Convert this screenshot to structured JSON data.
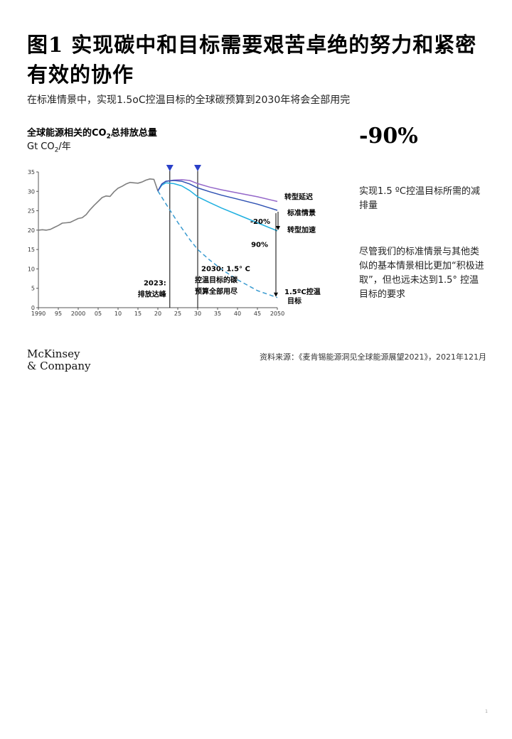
{
  "header": {
    "title": "图1 实现碳中和目标需要艰苦卓绝的努力和紧密有效的协作",
    "subtitle": "在标准情景中，实现1.5oC控温目标的全球碳预算到2030年将会全部用完"
  },
  "chart_header": {
    "title_prefix": "全球能源相关的CO",
    "title_sub": "2",
    "title_suffix": "总排放总量",
    "unit_prefix": "Gt CO",
    "unit_sub": "2",
    "unit_suffix": "/年"
  },
  "highlight": {
    "big_number": "-90%",
    "note1": "实现1.5 ºC控温目标所需的减排量",
    "note2": "尽管我们的标准情景与其他类似的基本情景相比更加“积极进取”，但也远未达到1.5° 控温目标的要求"
  },
  "footer": {
    "logo_line1": "McKinsey",
    "logo_line2": "& Company",
    "source": "资料来源：《麦肯锡能源洞见全球能源展望2021》，2021年121月",
    "page_number": "1"
  },
  "chart_data": {
    "type": "line",
    "xlim": [
      1990,
      2050
    ],
    "ylim": [
      0,
      35
    ],
    "x_ticks": [
      1990,
      1995,
      2000,
      2005,
      2010,
      2015,
      2020,
      2025,
      2030,
      2035,
      2040,
      2045,
      2050
    ],
    "x_tick_labels": [
      "1990",
      "95",
      "2000",
      "05",
      "10",
      "15",
      "20",
      "25",
      "30",
      "35",
      "40",
      "45",
      "2050"
    ],
    "y_ticks": [
      0,
      5,
      10,
      15,
      20,
      25,
      30,
      35
    ],
    "y_tick_labels": [
      "0",
      "5",
      "10",
      "15",
      "20",
      "25",
      "30",
      "35"
    ],
    "grid": false,
    "colors": {
      "history": "#7f7f7f",
      "delayed": "#9467c9",
      "reference": "#2f52b3",
      "accelerated": "#20b0e0",
      "target": "#3a9bd0",
      "marker": "#2a40c8"
    },
    "series": [
      {
        "key": "history",
        "x": [
          1990,
          1991,
          1992,
          1993,
          1994,
          1995,
          1996,
          1997,
          1998,
          1999,
          2000,
          2001,
          2002,
          2003,
          2004,
          2005,
          2006,
          2007,
          2008,
          2009,
          2010,
          2011,
          2012,
          2013,
          2014,
          2015,
          2016,
          2017,
          2018,
          2019,
          2020
        ],
        "y": [
          20.0,
          20.1,
          20.0,
          20.2,
          20.7,
          21.2,
          21.8,
          21.9,
          22.0,
          22.5,
          23.0,
          23.2,
          24.0,
          25.3,
          26.4,
          27.4,
          28.4,
          28.8,
          28.7,
          29.9,
          30.8,
          31.3,
          31.9,
          32.3,
          32.2,
          32.1,
          32.4,
          32.9,
          33.2,
          33.1,
          30.1
        ]
      },
      {
        "key": "delayed",
        "name": "转型延迟",
        "x": [
          2020,
          2021,
          2022,
          2024,
          2026,
          2028,
          2030,
          2033,
          2036,
          2040,
          2045,
          2050
        ],
        "y": [
          30.1,
          31.9,
          32.6,
          32.9,
          33.0,
          32.8,
          32.0,
          31.1,
          30.4,
          29.6,
          28.6,
          27.4
        ]
      },
      {
        "key": "reference",
        "name": "标准情景",
        "x": [
          2020,
          2021,
          2022,
          2024,
          2026,
          2028,
          2030,
          2033,
          2036,
          2040,
          2045,
          2050
        ],
        "y": [
          30.1,
          31.9,
          32.6,
          32.8,
          32.6,
          31.9,
          30.9,
          29.9,
          29.0,
          28.0,
          26.7,
          25.1
        ]
      },
      {
        "key": "accelerated",
        "name": "转型加速",
        "x": [
          2020,
          2021,
          2022,
          2024,
          2026,
          2028,
          2030,
          2033,
          2036,
          2040,
          2045,
          2050
        ],
        "y": [
          30.1,
          31.6,
          32.2,
          32.0,
          31.4,
          30.2,
          28.6,
          27.1,
          25.7,
          24.0,
          21.9,
          19.8
        ]
      },
      {
        "key": "target",
        "name": "1.5ºC控温目标",
        "x": [
          2020,
          2022,
          2025,
          2028,
          2030,
          2033,
          2036,
          2040,
          2045,
          2050
        ],
        "y": [
          30.1,
          26.8,
          22.0,
          17.6,
          15.0,
          12.3,
          9.9,
          7.2,
          4.4,
          2.6
        ]
      }
    ],
    "markers": [
      2023,
      2030
    ],
    "annotations": {
      "delayed_label": "转型延迟",
      "reference_label": "标准情景",
      "accelerated_label": "转型加速",
      "target_label_1": "1.5ºC控温",
      "target_label_2": "目标",
      "pct_20": "-20%",
      "pct_90": "90%",
      "peak_1": "2023:",
      "peak_2": "排放达峰",
      "budget_1": "2030: 1.5° C",
      "budget_2": "控温目标的碳",
      "budget_3": "预算全部用尽"
    }
  }
}
